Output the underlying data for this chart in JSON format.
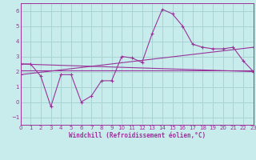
{
  "xlabel": "Windchill (Refroidissement éolien,°C)",
  "background_color": "#c8ecec",
  "grid_color": "#aad4d4",
  "line_color": "#993399",
  "xlim": [
    0,
    23
  ],
  "ylim": [
    -1.5,
    6.5
  ],
  "xticks": [
    0,
    1,
    2,
    3,
    4,
    5,
    6,
    7,
    8,
    9,
    10,
    11,
    12,
    13,
    14,
    15,
    16,
    17,
    18,
    19,
    20,
    21,
    22,
    23
  ],
  "yticks": [
    -1,
    0,
    1,
    2,
    3,
    4,
    5,
    6
  ],
  "series1_x": [
    0,
    1,
    2,
    3,
    4,
    5,
    6,
    7,
    8,
    9,
    10,
    11,
    12,
    13,
    14,
    15,
    16,
    17,
    18,
    19,
    20,
    21,
    22,
    23
  ],
  "series1_y": [
    2.5,
    2.5,
    1.7,
    -0.3,
    1.8,
    1.8,
    0.0,
    0.4,
    1.4,
    1.4,
    3.0,
    2.9,
    2.6,
    4.5,
    6.1,
    5.8,
    5.0,
    3.8,
    3.6,
    3.5,
    3.5,
    3.6,
    2.7,
    2.0
  ],
  "series2_x": [
    0,
    23
  ],
  "series2_y": [
    2.5,
    2.0
  ],
  "series3_x": [
    0,
    23
  ],
  "series3_y": [
    1.8,
    3.6
  ],
  "series4_x": [
    0,
    23
  ],
  "series4_y": [
    2.1,
    2.1
  ]
}
